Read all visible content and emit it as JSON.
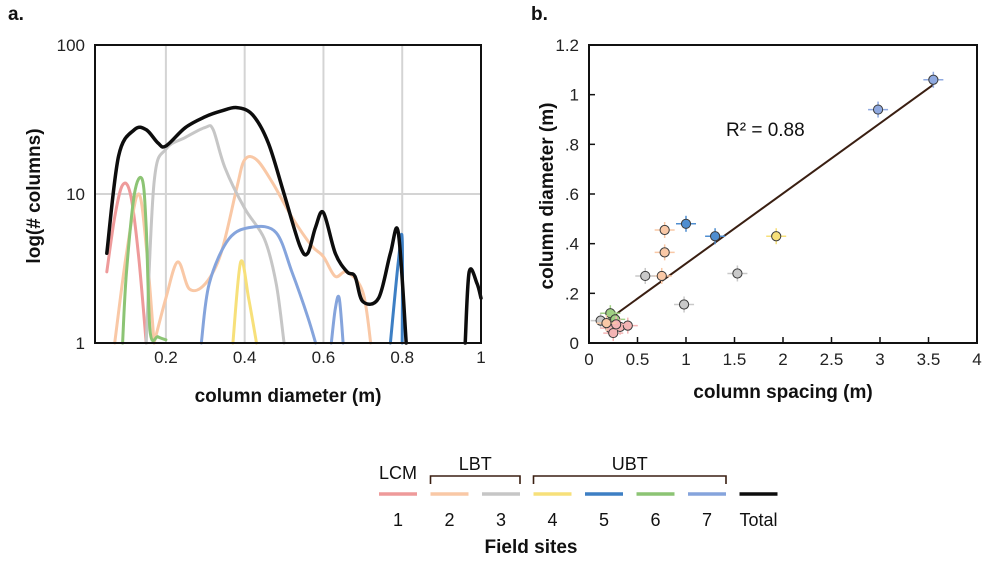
{
  "panels": {
    "a": "a.",
    "b": "b."
  },
  "chart_data": [
    {
      "type": "line",
      "xlabel": "column diameter (m)",
      "ylabel": "log(# columns)",
      "xlim": [
        0.02,
        1.0
      ],
      "ylim": [
        1,
        100
      ],
      "yscale": "log",
      "grid": true,
      "xticks": [
        {
          "v": 0.2,
          "label": "0.2"
        },
        {
          "v": 0.4,
          "label": "0.4"
        },
        {
          "v": 0.6,
          "label": "0.6"
        },
        {
          "v": 0.8,
          "label": "0.8"
        },
        {
          "v": 1.0,
          "label": "1"
        }
      ],
      "yticks": [
        {
          "v": 1,
          "label": "1"
        },
        {
          "v": 10,
          "label": "10"
        },
        {
          "v": 100,
          "label": "100"
        }
      ],
      "series": [
        {
          "name": "1",
          "color": "#ee9a9a",
          "width": 3,
          "points": [
            [
              0.05,
              3
            ],
            [
              0.07,
              7
            ],
            [
              0.09,
              11.5
            ],
            [
              0.11,
              10
            ],
            [
              0.13,
              4
            ],
            [
              0.15,
              1
            ]
          ]
        },
        {
          "name": "2",
          "color": "#f9c8a6",
          "width": 3,
          "points": [
            [
              0.07,
              1
            ],
            [
              0.1,
              4
            ],
            [
              0.13,
              10
            ],
            [
              0.15,
              4.5
            ],
            [
              0.17,
              1
            ]
          ],
          "points2": [
            [
              0.17,
              1
            ],
            [
              0.2,
              2
            ],
            [
              0.23,
              3.5
            ],
            [
              0.26,
              2.3
            ],
            [
              0.3,
              2.5
            ],
            [
              0.34,
              4
            ],
            [
              0.38,
              11
            ],
            [
              0.4,
              17
            ],
            [
              0.43,
              17
            ],
            [
              0.47,
              12
            ],
            [
              0.52,
              7
            ],
            [
              0.57,
              4.5
            ],
            [
              0.6,
              3.8
            ],
            [
              0.63,
              2.8
            ],
            [
              0.66,
              3
            ],
            [
              0.7,
              2.2
            ],
            [
              0.72,
              1
            ]
          ]
        },
        {
          "name": "3",
          "color": "#c6c6c6",
          "width": 3,
          "points": [
            [
              0.15,
              1
            ],
            [
              0.17,
              12
            ],
            [
              0.2,
              20
            ],
            [
              0.25,
              24
            ],
            [
              0.3,
              28
            ],
            [
              0.32,
              27
            ],
            [
              0.35,
              15
            ],
            [
              0.4,
              8
            ],
            [
              0.45,
              5
            ],
            [
              0.48,
              2.5
            ],
            [
              0.5,
              1
            ]
          ]
        },
        {
          "name": "4",
          "color": "#f7e07a",
          "width": 3,
          "points": [
            [
              0.37,
              1
            ],
            [
              0.39,
              3.5
            ],
            [
              0.41,
              2
            ],
            [
              0.43,
              1
            ]
          ]
        },
        {
          "name": "5",
          "color": "#3d7fc4",
          "width": 3,
          "points": [
            [
              0.77,
              1
            ],
            [
              0.79,
              3.5
            ],
            [
              0.8,
              5
            ],
            [
              0.8,
              1
            ]
          ]
        },
        {
          "name": "6",
          "color": "#8cc474",
          "width": 3,
          "points": [
            [
              0.09,
              1
            ],
            [
              0.1,
              3
            ],
            [
              0.12,
              10
            ],
            [
              0.14,
              12.5
            ],
            [
              0.15,
              6
            ],
            [
              0.16,
              1.2
            ],
            [
              0.18,
              1.1
            ],
            [
              0.2,
              1.05
            ]
          ]
        },
        {
          "name": "7",
          "color": "#85a4dc",
          "width": 3,
          "points": [
            [
              0.29,
              1
            ],
            [
              0.31,
              2.5
            ],
            [
              0.36,
              5
            ],
            [
              0.42,
              6
            ],
            [
              0.48,
              5.5
            ],
            [
              0.52,
              3
            ],
            [
              0.56,
              1.5
            ],
            [
              0.58,
              1
            ]
          ],
          "points2": [
            [
              0.62,
              1
            ],
            [
              0.63,
              1.7
            ],
            [
              0.64,
              2
            ],
            [
              0.65,
              1
            ]
          ]
        },
        {
          "name": "Total",
          "color": "#0d0d0d",
          "width": 3.5,
          "points": [
            [
              0.05,
              4
            ],
            [
              0.08,
              18
            ],
            [
              0.12,
              27
            ],
            [
              0.15,
              27
            ],
            [
              0.18,
              22
            ],
            [
              0.2,
              21
            ],
            [
              0.25,
              28
            ],
            [
              0.3,
              33
            ],
            [
              0.34,
              36
            ],
            [
              0.38,
              38
            ],
            [
              0.42,
              34
            ],
            [
              0.46,
              22
            ],
            [
              0.5,
              10
            ],
            [
              0.54,
              4.5
            ],
            [
              0.56,
              4
            ],
            [
              0.58,
              6
            ],
            [
              0.6,
              7.5
            ],
            [
              0.63,
              4
            ],
            [
              0.66,
              3
            ],
            [
              0.68,
              2.8
            ],
            [
              0.7,
              1.9
            ],
            [
              0.74,
              2
            ],
            [
              0.77,
              4
            ],
            [
              0.79,
              5.5
            ],
            [
              0.81,
              1
            ]
          ],
          "points2": [
            [
              0.96,
              1
            ],
            [
              0.97,
              3
            ],
            [
              0.99,
              2.5
            ],
            [
              1.0,
              2
            ]
          ]
        }
      ]
    },
    {
      "type": "scatter",
      "xlabel": "column spacing (m)",
      "ylabel": "column diameter (m)",
      "xlim": [
        0,
        4
      ],
      "ylim": [
        0,
        1.2
      ],
      "grid": false,
      "xticks": [
        {
          "v": 0,
          "label": "0"
        },
        {
          "v": 0.5,
          "label": "0.5"
        },
        {
          "v": 1,
          "label": "1"
        },
        {
          "v": 1.5,
          "label": "1.5"
        },
        {
          "v": 2,
          "label": "2"
        },
        {
          "v": 2.5,
          "label": "2.5"
        },
        {
          "v": 3,
          "label": "3"
        },
        {
          "v": 3.5,
          "label": "3.5"
        },
        {
          "v": 4,
          "label": "4"
        }
      ],
      "yticks": [
        {
          "v": 0,
          "label": "0"
        },
        {
          "v": 0.2,
          "label": ".2"
        },
        {
          "v": 0.4,
          "label": ".4"
        },
        {
          "v": 0.6,
          "label": ".6"
        },
        {
          "v": 0.8,
          "label": ".8"
        },
        {
          "v": 1.0,
          "label": "1"
        },
        {
          "v": 1.2,
          "label": "1.2"
        }
      ],
      "annotation": "R² = 0.88",
      "fit_line": {
        "x": [
          0.15,
          3.55
        ],
        "y": [
          0.08,
          1.04
        ],
        "color": "#3a1f12"
      },
      "points": [
        {
          "x": 3.55,
          "y": 1.06,
          "site": "7"
        },
        {
          "x": 2.98,
          "y": 0.94,
          "site": "7"
        },
        {
          "x": 1.0,
          "y": 0.48,
          "site": "5"
        },
        {
          "x": 1.3,
          "y": 0.43,
          "site": "5"
        },
        {
          "x": 0.78,
          "y": 0.455,
          "site": "2"
        },
        {
          "x": 0.78,
          "y": 0.365,
          "site": "2"
        },
        {
          "x": 0.75,
          "y": 0.27,
          "site": "2"
        },
        {
          "x": 1.93,
          "y": 0.43,
          "site": "4"
        },
        {
          "x": 1.53,
          "y": 0.28,
          "site": "3"
        },
        {
          "x": 0.58,
          "y": 0.27,
          "site": "3"
        },
        {
          "x": 0.98,
          "y": 0.155,
          "site": "3"
        },
        {
          "x": 0.12,
          "y": 0.09,
          "site": "3"
        },
        {
          "x": 0.22,
          "y": 0.12,
          "site": "6"
        },
        {
          "x": 0.27,
          "y": 0.095,
          "site": "6"
        },
        {
          "x": 0.32,
          "y": 0.065,
          "site": "1"
        },
        {
          "x": 0.4,
          "y": 0.07,
          "site": "1"
        },
        {
          "x": 0.22,
          "y": 0.06,
          "site": "1"
        },
        {
          "x": 0.25,
          "y": 0.04,
          "site": "1"
        },
        {
          "x": 0.28,
          "y": 0.075,
          "site": "1"
        },
        {
          "x": 0.18,
          "y": 0.08,
          "site": "2"
        }
      ]
    }
  ],
  "legend": {
    "title": "Field sites",
    "groups": [
      {
        "label": "LCM",
        "from": 0,
        "to": 0,
        "bracket": false
      },
      {
        "label": "LBT",
        "from": 1,
        "to": 2,
        "bracket": true
      },
      {
        "label": "UBT",
        "from": 3,
        "to": 6,
        "bracket": true
      }
    ],
    "items": [
      {
        "label": "1",
        "color": "#ee9a9a"
      },
      {
        "label": "2",
        "color": "#f9c8a6"
      },
      {
        "label": "3",
        "color": "#c6c6c6"
      },
      {
        "label": "4",
        "color": "#f7e07a"
      },
      {
        "label": "5",
        "color": "#3d7fc4"
      },
      {
        "label": "6",
        "color": "#8cc474"
      },
      {
        "label": "7",
        "color": "#85a4dc"
      },
      {
        "label": "Total",
        "color": "#0d0d0d"
      }
    ]
  },
  "site_fill": {
    "1": "#f4b4b4",
    "2": "#f9c8a6",
    "3": "#c9c9c9",
    "4": "#f7e07a",
    "5": "#4f8ed0",
    "6": "#9fcf83",
    "7": "#8fa9e0"
  }
}
